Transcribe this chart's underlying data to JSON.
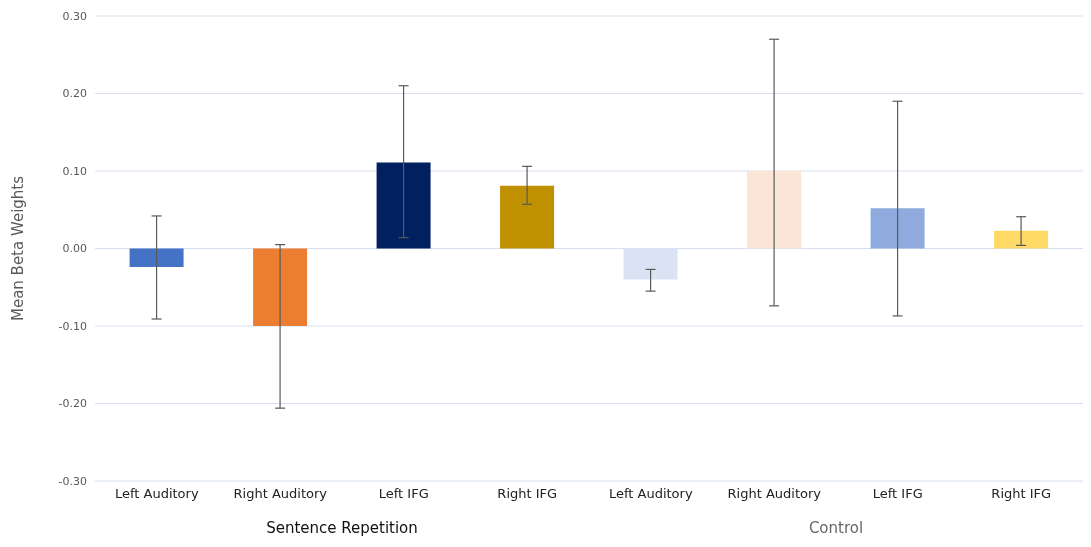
{
  "chart_data": {
    "type": "bar",
    "ylabel": "Mean Beta Weights",
    "categories": [
      "Left Auditory",
      "Right Auditory",
      "Left IFG",
      "Right IFG",
      "Left Auditory",
      "Right Auditory",
      "Left IFG",
      "Right IFG"
    ],
    "values": [
      -0.024,
      -0.1,
      0.111,
      0.081,
      -0.04,
      0.1,
      0.052,
      0.023
    ],
    "colors": [
      "#4472c4",
      "#ed7d31",
      "#002060",
      "#bf9000",
      "#dae3f3",
      "#fbe5d6",
      "#8faadc",
      "#ffd966"
    ],
    "errors": [
      [
        -0.091,
        0.042
      ],
      [
        -0.206,
        0.005
      ],
      [
        0.014,
        0.21
      ],
      [
        0.057,
        0.106
      ],
      [
        -0.055,
        -0.027
      ],
      [
        -0.074,
        0.27
      ],
      [
        -0.087,
        0.19
      ],
      [
        0.004,
        0.041
      ]
    ],
    "ylim": [
      -0.3,
      0.3
    ],
    "yticks": [
      {
        "value": -0.3,
        "label": "-0.30"
      },
      {
        "value": -0.2,
        "label": "-0.20"
      },
      {
        "value": -0.1,
        "label": "-0.10"
      },
      {
        "value": 0,
        "label": "0.00"
      },
      {
        "value": 0.1,
        "label": "0.10"
      },
      {
        "value": 0.2,
        "label": "0.20"
      },
      {
        "value": 0.3,
        "label": "0.30"
      }
    ],
    "grid": "y",
    "annotations": [
      "Sentence Repetition",
      "Control"
    ]
  }
}
